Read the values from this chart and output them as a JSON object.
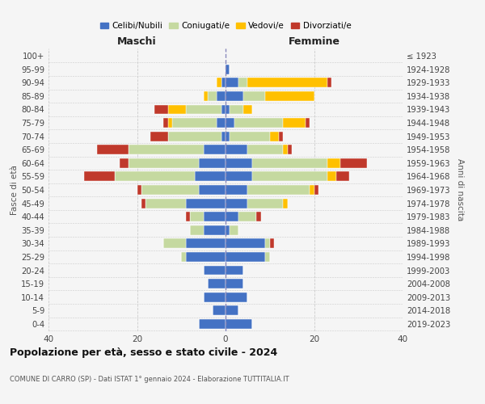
{
  "age_groups": [
    "0-4",
    "5-9",
    "10-14",
    "15-19",
    "20-24",
    "25-29",
    "30-34",
    "35-39",
    "40-44",
    "45-49",
    "50-54",
    "55-59",
    "60-64",
    "65-69",
    "70-74",
    "75-79",
    "80-84",
    "85-89",
    "90-94",
    "95-99",
    "100+"
  ],
  "birth_years": [
    "2019-2023",
    "2014-2018",
    "2009-2013",
    "2004-2008",
    "1999-2003",
    "1994-1998",
    "1989-1993",
    "1984-1988",
    "1979-1983",
    "1974-1978",
    "1969-1973",
    "1964-1968",
    "1959-1963",
    "1954-1958",
    "1949-1953",
    "1944-1948",
    "1939-1943",
    "1934-1938",
    "1929-1933",
    "1924-1928",
    "≤ 1923"
  ],
  "colors": {
    "celibi": "#4472c4",
    "coniugati": "#c5d9a0",
    "vedovi": "#ffc000",
    "divorziati": "#c0392b"
  },
  "maschi": {
    "celibi": [
      6,
      3,
      5,
      4,
      5,
      9,
      9,
      5,
      5,
      9,
      6,
      7,
      6,
      5,
      1,
      2,
      1,
      2,
      1,
      0,
      0
    ],
    "coniugati": [
      0,
      0,
      0,
      0,
      0,
      1,
      5,
      3,
      3,
      9,
      13,
      18,
      16,
      17,
      12,
      10,
      8,
      2,
      0,
      0,
      0
    ],
    "vedovi": [
      0,
      0,
      0,
      0,
      0,
      0,
      0,
      0,
      0,
      0,
      0,
      0,
      0,
      0,
      0,
      1,
      4,
      1,
      1,
      0,
      0
    ],
    "divorziati": [
      0,
      0,
      0,
      0,
      0,
      0,
      0,
      0,
      1,
      1,
      1,
      7,
      2,
      7,
      4,
      1,
      3,
      0,
      0,
      0,
      0
    ]
  },
  "femmine": {
    "celibi": [
      6,
      3,
      5,
      4,
      4,
      9,
      9,
      1,
      3,
      5,
      5,
      6,
      6,
      5,
      1,
      2,
      1,
      4,
      3,
      1,
      0
    ],
    "coniugati": [
      0,
      0,
      0,
      0,
      0,
      1,
      1,
      2,
      4,
      8,
      14,
      17,
      17,
      8,
      9,
      11,
      3,
      5,
      2,
      0,
      0
    ],
    "vedovi": [
      0,
      0,
      0,
      0,
      0,
      0,
      0,
      0,
      0,
      1,
      1,
      2,
      3,
      1,
      2,
      5,
      2,
      11,
      18,
      0,
      0
    ],
    "divorziati": [
      0,
      0,
      0,
      0,
      0,
      0,
      1,
      0,
      1,
      0,
      1,
      3,
      6,
      1,
      1,
      1,
      0,
      0,
      1,
      0,
      0
    ]
  },
  "title": "Popolazione per età, sesso e stato civile - 2024",
  "subtitle": "COMUNE DI CARRO (SP) - Dati ISTAT 1° gennaio 2024 - Elaborazione TUTTITALIA.IT",
  "xlabel_left": "Maschi",
  "xlabel_right": "Femmine",
  "ylabel_left": "Fasce di età",
  "ylabel_right": "Anni di nascita",
  "xlim": 40,
  "legend_labels": [
    "Celibi/Nubili",
    "Coniugati/e",
    "Vedovi/e",
    "Divorziati/e"
  ],
  "bg_color": "#f5f5f5",
  "bar_height": 0.72
}
